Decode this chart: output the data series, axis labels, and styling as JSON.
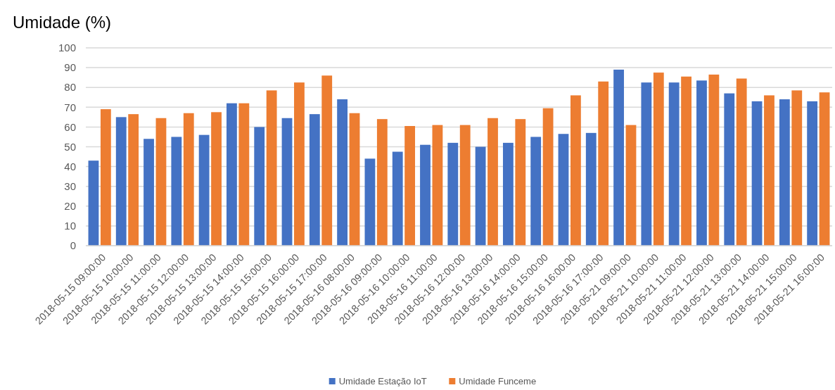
{
  "chart_data": {
    "type": "bar",
    "title": "Umidade (%)",
    "categories": [
      "2018-05-15 09:00:00",
      "2018-05-15 10:00:00",
      "2018-05-15 11:00:00",
      "2018-05-15 12:00:00",
      "2018-05-15 13:00:00",
      "2018-05-15 14:00:00",
      "2018-05-15 15:00:00",
      "2018-05-15 16:00:00",
      "2018-05-15 17:00:00",
      "2018-05-16 08:00:00",
      "2018-05-16 09:00:00",
      "2018-05-16 10:00:00",
      "2018-05-16 11:00:00",
      "2018-05-16 12:00:00",
      "2018-05-16 13:00:00",
      "2018-05-16 14:00:00",
      "2018-05-16 15:00:00",
      "2018-05-16 16:00:00",
      "2018-05-16 17:00:00",
      "2018-05-21 09:00:00",
      "2018-05-21 10:00:00",
      "2018-05-21 11:00:00",
      "2018-05-21 12:00:00",
      "2018-05-21 13:00:00",
      "2018-05-21 14:00:00",
      "2018-05-21 15:00:00",
      "2018-05-21 16:00:00"
    ],
    "series": [
      {
        "name": "Umidade Estação IoT",
        "color": "#4472c4",
        "values": [
          43,
          65,
          54,
          55,
          56,
          72,
          60,
          64.5,
          66.5,
          74,
          44,
          47.5,
          51,
          52,
          50,
          52,
          55,
          56.5,
          57,
          89,
          82.5,
          82.5,
          83.5,
          77,
          73,
          74,
          73
        ]
      },
      {
        "name": "Umidade Funceme",
        "color": "#ed7d31",
        "values": [
          69,
          66.5,
          64.5,
          67,
          67.5,
          72,
          78.5,
          82.5,
          86,
          67,
          64,
          60.5,
          61,
          61,
          64.5,
          64,
          69.5,
          76,
          83,
          61,
          87.5,
          85.5,
          86.5,
          84.5,
          76,
          78.5,
          77.5
        ]
      }
    ],
    "ylim": [
      0,
      100
    ],
    "yticks": [
      0,
      10,
      20,
      30,
      40,
      50,
      60,
      70,
      80,
      90,
      100
    ],
    "grid": "y",
    "legend": "bottom"
  }
}
